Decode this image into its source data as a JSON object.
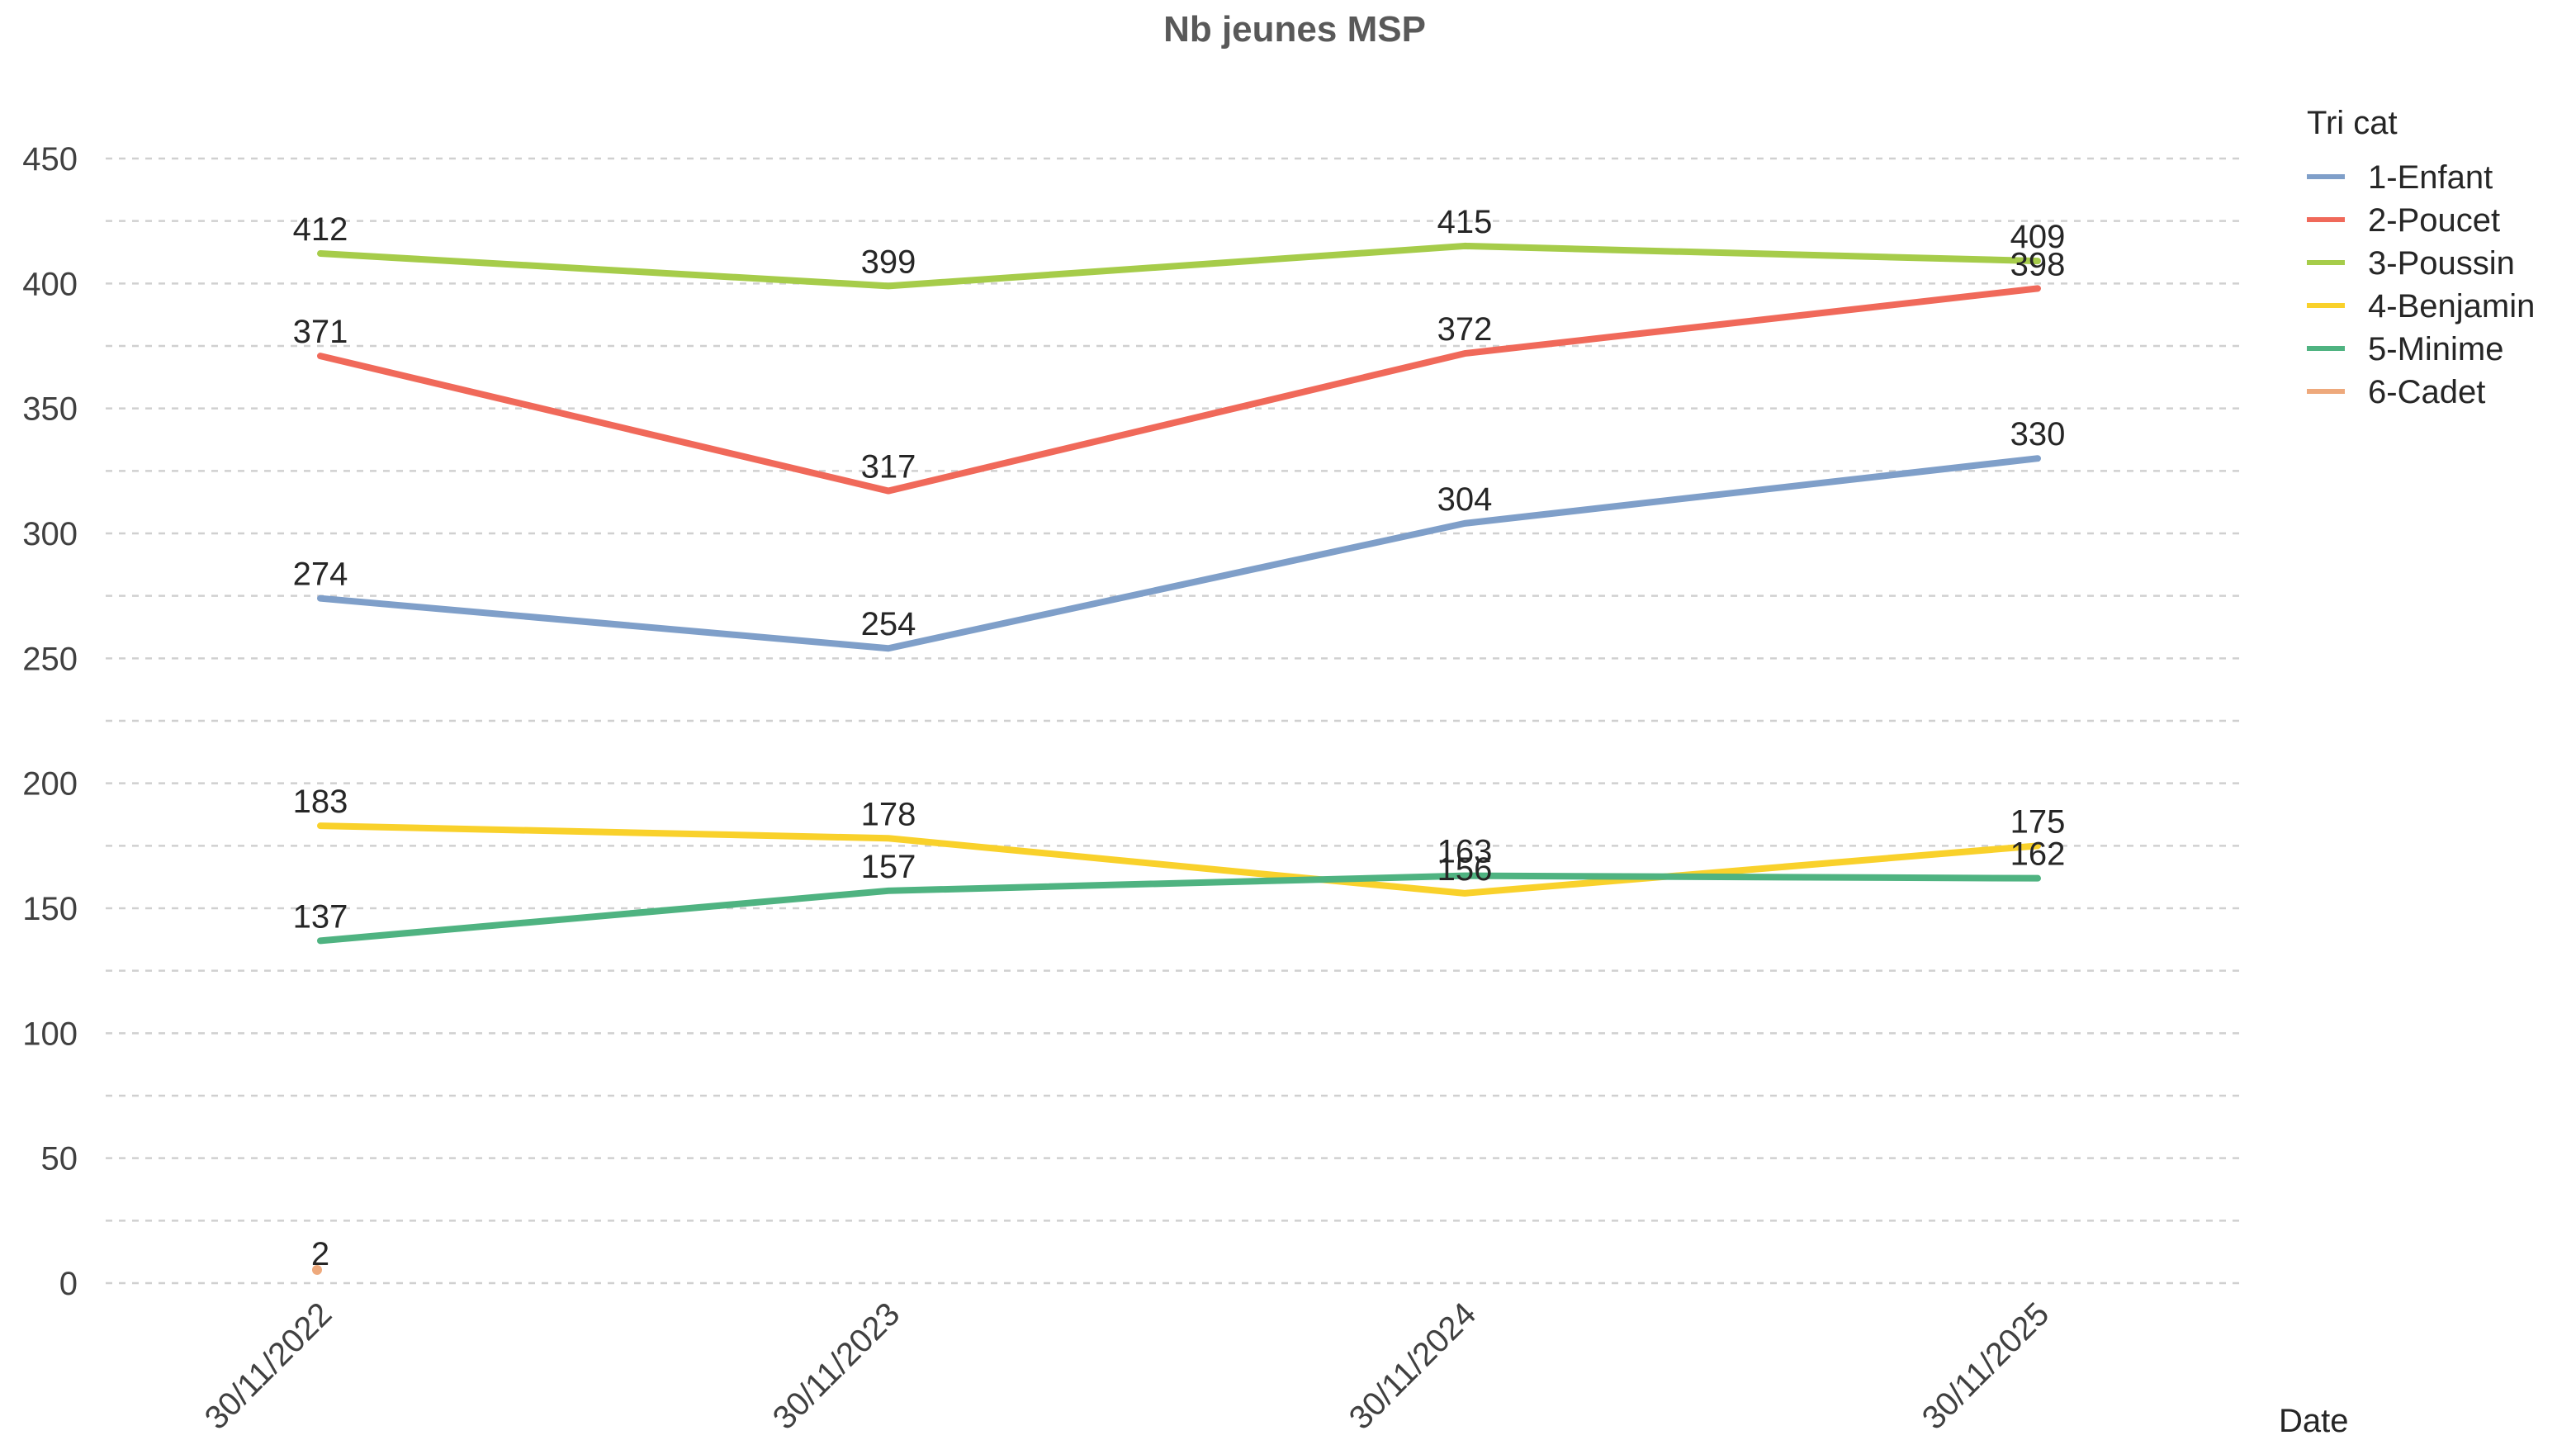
{
  "chart_data": {
    "type": "line",
    "title": "Nb jeunes MSP",
    "xlabel": "Date",
    "ylabel": "",
    "categories": [
      "30/11/2022",
      "30/11/2023",
      "30/11/2024",
      "30/11/2025"
    ],
    "ylim": [
      0,
      450
    ],
    "yticks": [
      0,
      50,
      100,
      150,
      200,
      250,
      300,
      350,
      400,
      450
    ],
    "grid": true,
    "legend_title": "Tri cat",
    "legend_position": "right",
    "series": [
      {
        "name": "1-Enfant",
        "color": "#7f9fc9",
        "values": [
          274,
          254,
          304,
          330
        ]
      },
      {
        "name": "2-Poucet",
        "color": "#f0695a",
        "values": [
          371,
          317,
          372,
          398
        ]
      },
      {
        "name": "3-Poussin",
        "color": "#a6cc4a",
        "values": [
          412,
          399,
          415,
          409
        ]
      },
      {
        "name": "4-Benjamin",
        "color": "#f9d12b",
        "values": [
          183,
          178,
          156,
          175
        ]
      },
      {
        "name": "5-Minime",
        "color": "#4fb381",
        "values": [
          137,
          157,
          163,
          162
        ]
      },
      {
        "name": "6-Cadet",
        "color": "#eea97c",
        "values": [
          2,
          null,
          null,
          null
        ]
      }
    ]
  }
}
